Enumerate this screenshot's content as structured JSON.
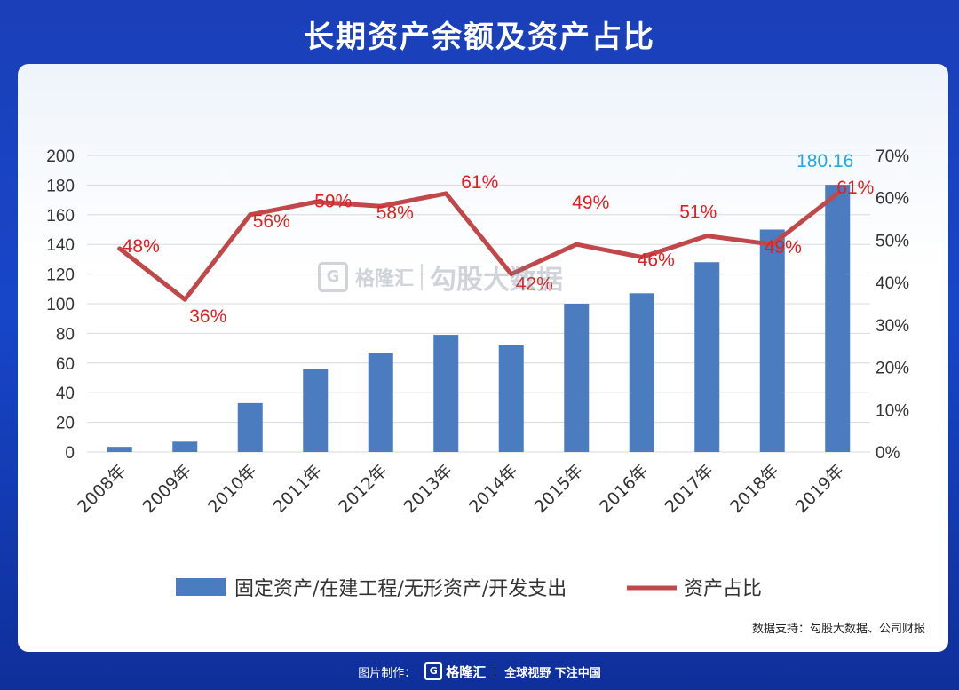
{
  "title": "长期资产余额及资产占比",
  "source_note": "数据支持：勾股大数据、公司财报",
  "watermark": {
    "brand": "格隆汇",
    "product": "勾股大数据",
    "g": "G"
  },
  "footer": {
    "label": "图片制作：",
    "brand": "格隆汇",
    "g": "G",
    "slogan": "全球视野 下注中国"
  },
  "colors": {
    "bar": "#4a7cbf",
    "line": "#c0474a",
    "pct_label": "#e02020",
    "top_label": "#1ea9e8"
  },
  "chart_data": {
    "type": "bar+line",
    "categories": [
      "2008年",
      "2009年",
      "2010年",
      "2011年",
      "2012年",
      "2013年",
      "2014年",
      "2015年",
      "2016年",
      "2017年",
      "2018年",
      "2019年"
    ],
    "series": [
      {
        "name": "固定资产/在建工程/无形资产/开发支出",
        "type": "bar",
        "axis": "left",
        "values": [
          3.5,
          7,
          33,
          56,
          67,
          79,
          72,
          100,
          107,
          128,
          150,
          180.16
        ]
      },
      {
        "name": "资产占比",
        "type": "line",
        "axis": "right",
        "values": [
          48,
          36,
          56,
          59,
          58,
          61,
          42,
          49,
          46,
          51,
          49,
          61
        ]
      }
    ],
    "bar_value_label": {
      "index": 11,
      "text": "180.16"
    },
    "line_labels": [
      "48%",
      "36%",
      "56%",
      "59%",
      "58%",
      "61%",
      "42%",
      "49%",
      "46%",
      "51%",
      "49%",
      "61%"
    ],
    "y_left": {
      "min": 0,
      "max": 200,
      "ticks": [
        "0",
        "20",
        "40",
        "60",
        "80",
        "100",
        "120",
        "140",
        "160",
        "180",
        "200"
      ]
    },
    "y_right": {
      "min": 0,
      "max": 70,
      "ticks": [
        "0%",
        "10%",
        "20%",
        "30%",
        "40%",
        "50%",
        "60%",
        "70%"
      ]
    },
    "grid": true,
    "legend_position": "bottom"
  }
}
